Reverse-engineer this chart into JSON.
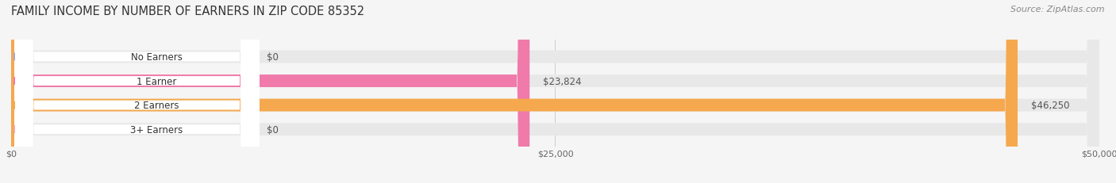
{
  "title": "FAMILY INCOME BY NUMBER OF EARNERS IN ZIP CODE 85352",
  "source": "Source: ZipAtlas.com",
  "categories": [
    "No Earners",
    "1 Earner",
    "2 Earners",
    "3+ Earners"
  ],
  "values": [
    0,
    23824,
    46250,
    0
  ],
  "bar_colors": [
    "#a8a8d8",
    "#f07aaa",
    "#f5a84e",
    "#f0a8a8"
  ],
  "value_labels": [
    "$0",
    "$23,824",
    "$46,250",
    "$0"
  ],
  "xlim_max": 50000,
  "xtick_labels": [
    "$0",
    "$25,000",
    "$50,000"
  ],
  "background_color": "#f5f5f5",
  "bar_background_color": "#e8e8e8",
  "title_fontsize": 10.5,
  "source_fontsize": 8,
  "label_fontsize": 8.5,
  "value_fontsize": 8.5
}
